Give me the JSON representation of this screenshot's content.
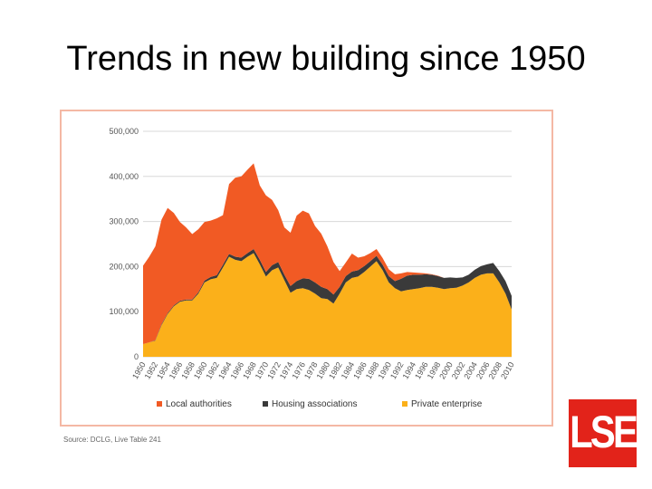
{
  "slide": {
    "title": "Trends in new building since 1950",
    "source": "Source: DCLG, Live Table 241",
    "logo_text": "LSE"
  },
  "colors": {
    "local_authorities": "#f15a24",
    "housing_associations": "#3a3a3a",
    "private_enterprise": "#fbb01a",
    "frame": "#f4b8a4",
    "logo": "#e2231a"
  },
  "chart_data": {
    "type": "area",
    "stacked": true,
    "title": "",
    "xlabel": "",
    "ylabel": "",
    "ylim": [
      0,
      500000
    ],
    "yticks": [
      0,
      100000,
      200000,
      300000,
      400000,
      500000
    ],
    "ytick_labels": [
      "0",
      "100,000",
      "200,000",
      "300,000",
      "400,000",
      "500,000"
    ],
    "x": [
      1950,
      1951,
      1952,
      1953,
      1954,
      1955,
      1956,
      1957,
      1958,
      1959,
      1960,
      1961,
      1962,
      1963,
      1964,
      1965,
      1966,
      1967,
      1968,
      1969,
      1970,
      1971,
      1972,
      1973,
      1974,
      1975,
      1976,
      1977,
      1978,
      1979,
      1980,
      1981,
      1982,
      1983,
      1984,
      1985,
      1986,
      1987,
      1988,
      1989,
      1990,
      1991,
      1992,
      1993,
      1994,
      1995,
      1996,
      1997,
      1998,
      1999,
      2000,
      2001,
      2002,
      2003,
      2004,
      2005,
      2006,
      2007,
      2008,
      2009,
      2010
    ],
    "xtick_labels": [
      "1950",
      "1952",
      "1954",
      "1956",
      "1958",
      "1960",
      "1962",
      "1964",
      "1966",
      "1968",
      "1970",
      "1972",
      "1974",
      "1976",
      "1978",
      "1980",
      "1982",
      "1984",
      "1986",
      "1988",
      "1990",
      "1992",
      "1994",
      "1996",
      "1998",
      "2000",
      "2002",
      "2004",
      "2006",
      "2008",
      "2010"
    ],
    "legend_position": "bottom",
    "series": [
      {
        "name": "Private enterprise",
        "color": "#fbb01a",
        "values": [
          28000,
          32000,
          36000,
          70000,
          95000,
          112000,
          122000,
          125000,
          125000,
          140000,
          165000,
          172000,
          175000,
          198000,
          222000,
          215000,
          212000,
          222000,
          230000,
          205000,
          178000,
          192000,
          198000,
          170000,
          142000,
          150000,
          152000,
          148000,
          140000,
          130000,
          128000,
          118000,
          140000,
          165000,
          175000,
          178000,
          188000,
          200000,
          212000,
          192000,
          165000,
          152000,
          145000,
          148000,
          150000,
          152000,
          155000,
          155000,
          153000,
          150000,
          152000,
          153000,
          158000,
          165000,
          175000,
          182000,
          185000,
          185000,
          165000,
          140000,
          105000
        ]
      },
      {
        "name": "Housing associations",
        "color": "#3a3a3a",
        "values": [
          0,
          0,
          1000,
          2000,
          2000,
          2000,
          2000,
          2000,
          2000,
          3000,
          4000,
          5000,
          6000,
          6000,
          6000,
          7000,
          8000,
          8000,
          9000,
          10000,
          10000,
          11000,
          12000,
          12000,
          15000,
          18000,
          22000,
          25000,
          25000,
          25000,
          22000,
          20000,
          15000,
          14000,
          14000,
          14000,
          13000,
          12000,
          12000,
          12000,
          14000,
          16000,
          28000,
          32000,
          32000,
          30000,
          28000,
          27000,
          26000,
          25000,
          24000,
          22000,
          18000,
          17000,
          18000,
          19000,
          20000,
          23000,
          25000,
          28000,
          30000
        ]
      },
      {
        "name": "Local authorities",
        "color": "#f15a24",
        "values": [
          174000,
          190000,
          208000,
          232000,
          233000,
          205000,
          175000,
          160000,
          145000,
          140000,
          130000,
          125000,
          126000,
          110000,
          155000,
          175000,
          180000,
          185000,
          190000,
          165000,
          170000,
          145000,
          115000,
          105000,
          118000,
          145000,
          150000,
          145000,
          125000,
          118000,
          95000,
          72000,
          35000,
          30000,
          40000,
          28000,
          22000,
          18000,
          15000,
          15000,
          15000,
          15000,
          12000,
          8000,
          5000,
          4000,
          2000,
          1000,
          1000,
          0,
          0,
          0,
          0,
          0,
          0,
          0,
          0,
          0,
          0,
          0,
          0
        ]
      }
    ]
  }
}
